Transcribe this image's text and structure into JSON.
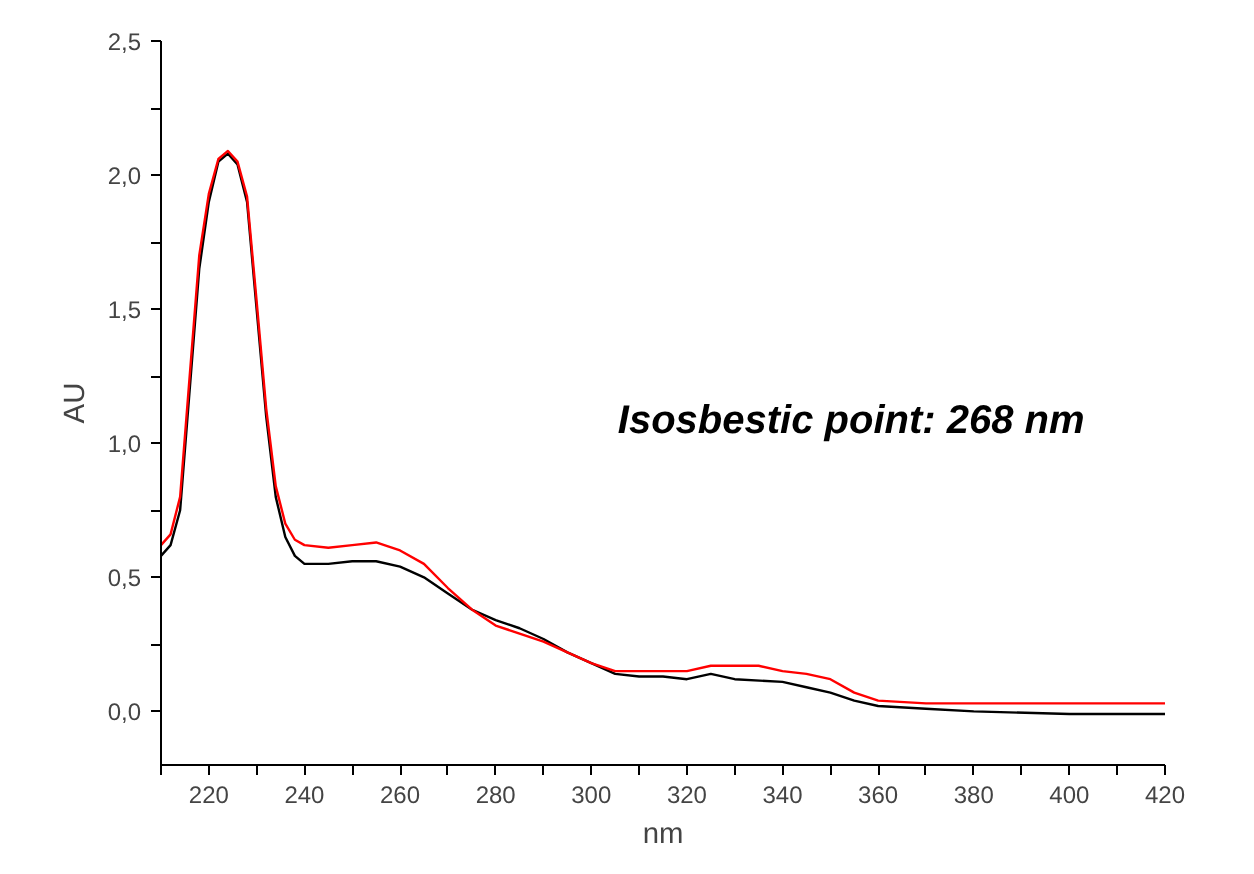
{
  "chart_data": {
    "type": "line",
    "xlabel": "nm",
    "ylabel": "AU",
    "xlim": [
      210,
      420
    ],
    "ylim": [
      -0.2,
      2.5
    ],
    "xticks": [
      {
        "value": 210,
        "label": null
      },
      220,
      {
        "value": 230,
        "label": null
      },
      240,
      {
        "value": 250,
        "label": null
      },
      260,
      {
        "value": 270,
        "label": null
      },
      280,
      {
        "value": 290,
        "label": null
      },
      300,
      {
        "value": 310,
        "label": null
      },
      320,
      {
        "value": 330,
        "label": null
      },
      340,
      {
        "value": 350,
        "label": null
      },
      360,
      {
        "value": 370,
        "label": null
      },
      380,
      {
        "value": 390,
        "label": null
      },
      400,
      {
        "value": 410,
        "label": null
      },
      420
    ],
    "yticks": [
      {
        "value": 0,
        "label": "0,0"
      },
      {
        "value": 0.25,
        "label": null
      },
      {
        "value": 0.5,
        "label": "0,5"
      },
      {
        "value": 0.75,
        "label": null
      },
      {
        "value": 1.0,
        "label": "1,0"
      },
      {
        "value": 1.25,
        "label": null
      },
      {
        "value": 1.5,
        "label": "1,5"
      },
      {
        "value": 1.75,
        "label": null
      },
      {
        "value": 2.0,
        "label": "2,0"
      },
      {
        "value": 2.25,
        "label": null
      },
      {
        "value": 2.5,
        "label": "2,5"
      }
    ],
    "grid": false,
    "marker": "none",
    "line_style": "solid",
    "annotations": [
      "Isosbestic point: 268 nm"
    ],
    "series": [
      {
        "color": "#000000",
        "x": [
          210,
          212,
          214,
          216,
          218,
          220,
          222,
          224,
          226,
          228,
          230,
          232,
          234,
          236,
          238,
          240,
          245,
          250,
          255,
          260,
          265,
          270,
          275,
          280,
          285,
          290,
          295,
          300,
          305,
          310,
          315,
          320,
          325,
          330,
          340,
          345,
          350,
          355,
          360,
          370,
          380,
          400,
          420
        ],
        "values": [
          0.58,
          0.62,
          0.75,
          1.2,
          1.65,
          1.9,
          2.05,
          2.08,
          2.04,
          1.9,
          1.5,
          1.1,
          0.8,
          0.65,
          0.58,
          0.55,
          0.55,
          0.56,
          0.56,
          0.54,
          0.5,
          0.44,
          0.38,
          0.34,
          0.31,
          0.27,
          0.22,
          0.18,
          0.14,
          0.13,
          0.13,
          0.12,
          0.14,
          0.12,
          0.11,
          0.09,
          0.07,
          0.04,
          0.02,
          0.01,
          0.0,
          -0.01,
          -0.01
        ]
      },
      {
        "color": "#ff0000",
        "x": [
          210,
          212,
          214,
          216,
          218,
          220,
          222,
          224,
          226,
          228,
          230,
          232,
          234,
          236,
          238,
          240,
          245,
          250,
          255,
          260,
          265,
          270,
          275,
          280,
          285,
          290,
          295,
          300,
          305,
          310,
          320,
          325,
          330,
          335,
          340,
          345,
          350,
          355,
          360,
          370,
          380,
          420
        ],
        "values": [
          0.62,
          0.66,
          0.8,
          1.25,
          1.7,
          1.93,
          2.06,
          2.09,
          2.05,
          1.92,
          1.53,
          1.13,
          0.84,
          0.7,
          0.64,
          0.62,
          0.61,
          0.62,
          0.63,
          0.6,
          0.55,
          0.46,
          0.38,
          0.32,
          0.29,
          0.26,
          0.22,
          0.18,
          0.15,
          0.15,
          0.15,
          0.17,
          0.17,
          0.17,
          0.15,
          0.14,
          0.12,
          0.07,
          0.04,
          0.03,
          0.03,
          0.03
        ]
      }
    ]
  }
}
